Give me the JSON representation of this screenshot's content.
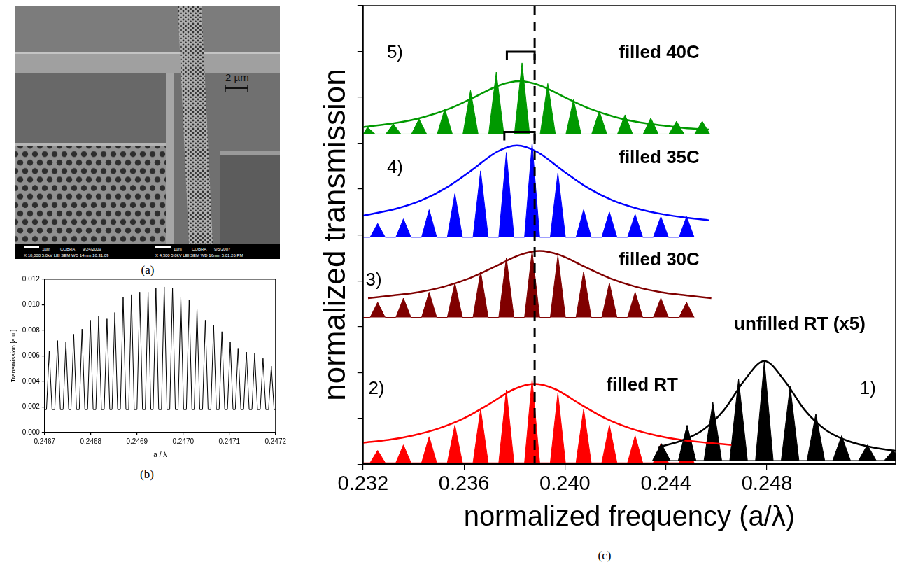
{
  "image": {
    "label": "(a)",
    "scale_bar": "2 µm",
    "info": [
      {
        "scale": "1µm",
        "name": "COBRA",
        "date": "9/24/2009",
        "settings": "X 10,000  5.0kV  LEI  SEM  WD 14mm  10:31:09"
      },
      {
        "scale": "1µm",
        "name": "COBRA",
        "date": "9/5/2007",
        "settings": "X 4,300  5.0kV  LEI  SEM  WD 16mm  5:01:26 PM"
      }
    ]
  },
  "chart_data": [
    {
      "label": "(b)",
      "type": "line",
      "x_label": "a / λ",
      "y_label": "Transmission [a.u.]",
      "xlim": [
        0.2467,
        0.2472
      ],
      "xticks": [
        0.2467,
        0.2468,
        0.2469,
        {
          "value": 0.247,
          "label": "0.2470"
        },
        0.2471,
        0.2472
      ],
      "ylim": [
        0,
        0.012
      ],
      "yticks": [
        {
          "value": 0,
          "label": "0.000"
        },
        0.002,
        0.004,
        0.006,
        0.008,
        {
          "value": 0.01,
          "label": "0.010"
        },
        0.012
      ],
      "grid": false,
      "series": [
        {
          "color": "#000000",
          "x": [
            0.2467,
            0.246704,
            0.24671,
            0.246716,
            0.246722,
            0.246728,
            0.246734,
            0.24674,
            0.246746,
            0.246752,
            0.246757,
            0.246763,
            0.246769,
            0.246775,
            0.246781,
            0.246787,
            0.246793,
            0.246799,
            0.246805,
            0.246811,
            0.246817,
            0.246823,
            0.246829,
            0.246835,
            0.246841,
            0.246846,
            0.246852,
            0.246858,
            0.246864,
            0.24687,
            0.246876,
            0.246882,
            0.246888,
            0.246894,
            0.2469,
            0.246906,
            0.246912,
            0.246918,
            0.246924,
            0.24693,
            0.246935,
            0.246941,
            0.246947,
            0.246953,
            0.246959,
            0.246965,
            0.246971,
            0.246977,
            0.246983,
            0.246989,
            0.246995,
            0.247001,
            0.247007,
            0.247013,
            0.247019,
            0.247024,
            0.24703,
            0.247036,
            0.247042,
            0.247048,
            0.247054,
            0.24706,
            0.247066,
            0.247072,
            0.247078,
            0.247084,
            0.24709,
            0.247096,
            0.247102,
            0.247108,
            0.247113,
            0.247119,
            0.247125,
            0.247131,
            0.247137,
            0.247143,
            0.247149,
            0.247155,
            0.247161,
            0.247167,
            0.247173,
            0.247179,
            0.247185,
            0.247191,
            0.247197,
            0.2472
          ],
          "values": [
            0.0018,
            0.0018,
            0.0064,
            0.0018,
            0.0018,
            0.0072,
            0.0018,
            0.0018,
            0.0071,
            0.0018,
            0.0018,
            0.0077,
            0.0018,
            0.0018,
            0.0081,
            0.0018,
            0.0018,
            0.0088,
            0.0018,
            0.0018,
            0.0091,
            0.0018,
            0.0018,
            0.0089,
            0.0018,
            0.0018,
            0.0094,
            0.0018,
            0.0018,
            0.0106,
            0.0018,
            0.0018,
            0.0108,
            0.0018,
            0.0018,
            0.011,
            0.0018,
            0.0018,
            0.011,
            0.0018,
            0.0018,
            0.0113,
            0.0018,
            0.0018,
            0.0114,
            0.0018,
            0.0018,
            0.0113,
            0.0018,
            0.0018,
            0.0106,
            0.0018,
            0.0018,
            0.0104,
            0.0018,
            0.0018,
            0.0097,
            0.0018,
            0.0018,
            0.0088,
            0.0018,
            0.0018,
            0.0084,
            0.0018,
            0.0018,
            0.0079,
            0.0018,
            0.0018,
            0.0071,
            0.0018,
            0.0018,
            0.0066,
            0.0018,
            0.0018,
            0.0063,
            0.0018,
            0.0018,
            0.0062,
            0.0018,
            0.0018,
            0.0058,
            0.0018,
            0.0018,
            0.0052,
            0.0018,
            0.0018
          ]
        }
      ]
    },
    {
      "label": "(c)",
      "type": "line",
      "x_label": "normalized frequency (a/λ)",
      "y_label": "normalized transmission",
      "xlim": [
        0.232,
        0.2531
      ],
      "xticks": [
        0.232,
        0.236,
        {
          "value": 0.24,
          "label": "0.240"
        },
        0.244,
        0.248
      ],
      "ylim": [
        0,
        10
      ],
      "yticks": [
        0,
        1,
        2,
        3,
        4,
        5,
        6,
        7,
        8,
        9,
        10
      ],
      "tick_labels": "x",
      "grid": false,
      "reference_line": 0.2388,
      "series": [
        {
          "name": "unfilled RT (x5)",
          "label": "1)",
          "color": "#000000",
          "x": [
            0.24347,
            0.24382,
            0.24417,
            0.24449,
            0.24484,
            0.24519,
            0.24551,
            0.24586,
            0.24621,
            0.24653,
            0.24688,
            0.24723,
            0.24755,
            0.2479,
            0.24825,
            0.24857,
            0.24892,
            0.24927,
            0.24959,
            0.24994,
            0.25029,
            0.25061,
            0.25096,
            0.25131,
            0.25163,
            0.25198,
            0.25233,
            0.25265,
            0.253,
            0.25335
          ],
          "values": [
            0.08,
            0.45,
            0.08,
            0.08,
            0.85,
            0.08,
            0.08,
            1.35,
            0.08,
            0.08,
            1.85,
            0.08,
            0.08,
            2.25,
            0.08,
            0.08,
            1.7,
            0.08,
            0.08,
            1.1,
            0.08,
            0.08,
            0.62,
            0.08,
            0.08,
            0.42,
            0.08,
            0.08,
            0.3,
            0.08
          ],
          "fit_x": [
            0.2437,
            0.2447,
            0.2455,
            0.2463,
            0.2471,
            0.2479,
            0.2487,
            0.2495,
            0.2503,
            0.2511,
            0.2519,
            0.2527,
            0.2531
          ],
          "fit_values": [
            0.37,
            0.53,
            0.76,
            1.18,
            1.82,
            2.25,
            1.82,
            1.18,
            0.76,
            0.53,
            0.4,
            0.32,
            0.29
          ]
        },
        {
          "name": "filled RT",
          "label": "2)",
          "color": "#ff0000",
          "x": [
            0.232,
            0.23228,
            0.23258,
            0.23288,
            0.2333,
            0.2336,
            0.2339,
            0.23432,
            0.23462,
            0.23492,
            0.23534,
            0.23564,
            0.23594,
            0.23636,
            0.23666,
            0.23696,
            0.23738,
            0.23768,
            0.23798,
            0.2384,
            0.2387,
            0.239,
            0.23942,
            0.23972,
            0.24002,
            0.24044,
            0.24074,
            0.24104,
            0.24146,
            0.24176,
            0.24206,
            0.24248,
            0.24278,
            0.24308,
            0.2435,
            0.2438,
            0.2441,
            0.24452,
            0.24482,
            0.24512
          ],
          "values": [
            0.03,
            0.03,
            0.3,
            0.03,
            0.03,
            0.42,
            0.03,
            0.03,
            0.6,
            0.03,
            0.03,
            0.85,
            0.03,
            0.03,
            1.2,
            0.03,
            0.03,
            1.62,
            0.03,
            0.03,
            1.85,
            0.03,
            0.03,
            1.55,
            0.03,
            0.03,
            1.2,
            0.03,
            0.03,
            0.85,
            0.03,
            0.03,
            0.62,
            0.03,
            0.03,
            0.45,
            0.03,
            0.03,
            0.34,
            0.03
          ],
          "fit_x": [
            0.232,
            0.233,
            0.234,
            0.235,
            0.236,
            0.237,
            0.238,
            0.2388,
            0.2396,
            0.2406,
            0.2416,
            0.2426,
            0.2436,
            0.2446,
            0.2456,
            0.2466
          ],
          "fit_values": [
            0.47,
            0.53,
            0.63,
            0.78,
            1.0,
            1.31,
            1.64,
            1.75,
            1.64,
            1.31,
            1.0,
            0.78,
            0.63,
            0.53,
            0.47,
            0.42
          ]
        },
        {
          "name": "filled 30C",
          "label": "3)",
          "color": "#800000",
          "x": [
            0.232,
            0.23228,
            0.23258,
            0.23288,
            0.2333,
            0.2336,
            0.2339,
            0.23432,
            0.23462,
            0.23492,
            0.23534,
            0.23564,
            0.23594,
            0.23636,
            0.23666,
            0.23696,
            0.23738,
            0.23768,
            0.23798,
            0.2384,
            0.2387,
            0.239,
            0.23942,
            0.23972,
            0.24002,
            0.24044,
            0.24074,
            0.24104,
            0.24146,
            0.24176,
            0.24206,
            0.24248,
            0.24278,
            0.24308,
            0.2435,
            0.2438,
            0.2441,
            0.24452,
            0.24482,
            0.24512
          ],
          "values": [
            3.2,
            3.2,
            3.53,
            3.2,
            3.2,
            3.62,
            3.2,
            3.2,
            3.75,
            3.2,
            3.2,
            3.95,
            3.2,
            3.2,
            4.2,
            3.2,
            3.2,
            4.5,
            3.2,
            3.2,
            4.65,
            3.2,
            3.2,
            4.55,
            3.2,
            3.2,
            4.2,
            3.2,
            3.2,
            3.95,
            3.2,
            3.2,
            3.75,
            3.2,
            3.2,
            3.62,
            3.2,
            3.2,
            3.53,
            3.2
          ],
          "fit_x": [
            0.2322,
            0.2332,
            0.2342,
            0.2352,
            0.2362,
            0.2372,
            0.2382,
            0.239,
            0.2398,
            0.2408,
            0.2418,
            0.2428,
            0.2438,
            0.2448,
            0.2458
          ],
          "fit_values": [
            3.62,
            3.68,
            3.75,
            3.87,
            4.05,
            4.3,
            4.56,
            4.65,
            4.56,
            4.3,
            4.05,
            3.87,
            3.75,
            3.68,
            3.62
          ]
        },
        {
          "name": "filled 35C",
          "label": "4)",
          "color": "#0000ff",
          "x": [
            0.232,
            0.23228,
            0.23258,
            0.23288,
            0.2333,
            0.2336,
            0.2339,
            0.23432,
            0.23462,
            0.23492,
            0.23534,
            0.23564,
            0.23594,
            0.23636,
            0.23666,
            0.23696,
            0.23738,
            0.23768,
            0.23798,
            0.2384,
            0.2387,
            0.239,
            0.23942,
            0.23972,
            0.24002,
            0.24044,
            0.24074,
            0.24104,
            0.24146,
            0.24176,
            0.24206,
            0.24248,
            0.24278,
            0.24308,
            0.2435,
            0.2438,
            0.2441,
            0.24452,
            0.24482,
            0.24512
          ],
          "values": [
            4.95,
            4.95,
            5.25,
            4.95,
            4.95,
            5.35,
            4.95,
            4.95,
            5.55,
            4.95,
            4.95,
            5.9,
            4.95,
            4.95,
            6.4,
            4.95,
            4.95,
            6.8,
            4.95,
            4.95,
            7.0,
            4.95,
            4.95,
            6.35,
            4.95,
            4.95,
            5.55,
            4.95,
            4.95,
            5.5,
            4.95,
            4.95,
            5.45,
            4.95,
            4.95,
            5.4,
            4.95,
            4.95,
            5.4,
            4.95
          ],
          "fit_x": [
            0.232,
            0.2333,
            0.2343,
            0.2353,
            0.2363,
            0.2373,
            0.2381,
            0.2389,
            0.2399,
            0.2409,
            0.2419,
            0.2429,
            0.2439,
            0.2449,
            0.2457
          ],
          "fit_values": [
            5.42,
            5.57,
            5.75,
            6.03,
            6.41,
            6.81,
            6.95,
            6.81,
            6.41,
            6.03,
            5.75,
            5.57,
            5.45,
            5.37,
            5.32
          ],
          "shift": [
            0.2376,
            0.2388
          ]
        },
        {
          "name": "filled 40C",
          "label": "5)",
          "color": "#009900",
          "x": [
            0.232,
            0.23218,
            0.23248,
            0.2329,
            0.2332,
            0.2335,
            0.23392,
            0.23422,
            0.23452,
            0.23494,
            0.23524,
            0.23554,
            0.23596,
            0.23626,
            0.23656,
            0.23698,
            0.23728,
            0.23758,
            0.238,
            0.2383,
            0.2386,
            0.23902,
            0.23932,
            0.23962,
            0.24004,
            0.24034,
            0.24064,
            0.24106,
            0.24136,
            0.24166,
            0.24208,
            0.24238,
            0.24268,
            0.2431,
            0.2434,
            0.2437,
            0.24412,
            0.24442,
            0.24472,
            0.24514,
            0.24544,
            0.24574
          ],
          "values": [
            7.2,
            7.35,
            7.2,
            7.2,
            7.42,
            7.2,
            7.2,
            7.53,
            7.2,
            7.2,
            7.75,
            7.2,
            7.2,
            8.15,
            7.2,
            7.2,
            8.55,
            7.2,
            7.2,
            8.75,
            7.2,
            7.2,
            8.3,
            7.2,
            7.2,
            7.95,
            7.2,
            7.2,
            7.7,
            7.2,
            7.2,
            7.62,
            7.2,
            7.2,
            7.55,
            7.2,
            7.2,
            7.48,
            7.2,
            7.2,
            7.48,
            7.2
          ],
          "fit_x": [
            0.232,
            0.2334,
            0.2344,
            0.2354,
            0.2364,
            0.2374,
            0.2382,
            0.239,
            0.24,
            0.241,
            0.242,
            0.243,
            0.244,
            0.245,
            0.2457
          ],
          "fit_values": [
            7.35,
            7.45,
            7.57,
            7.75,
            8.0,
            8.26,
            8.35,
            8.26,
            8.0,
            7.75,
            7.57,
            7.45,
            7.38,
            7.32,
            7.3
          ],
          "shift": [
            0.2377,
            0.2388
          ]
        }
      ]
    }
  ]
}
